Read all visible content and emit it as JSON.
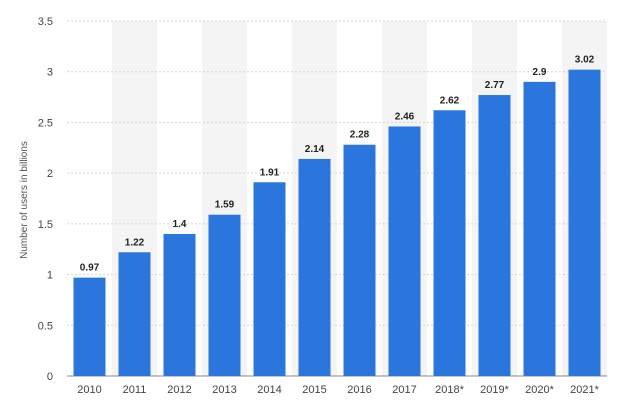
{
  "chart_data": {
    "type": "bar",
    "categories": [
      "2010",
      "2011",
      "2012",
      "2013",
      "2014",
      "2015",
      "2016",
      "2017",
      "2018*",
      "2019*",
      "2020*",
      "2021*"
    ],
    "values": [
      0.97,
      1.22,
      1.4,
      1.59,
      1.91,
      2.14,
      2.28,
      2.46,
      2.62,
      2.77,
      2.9,
      3.02
    ],
    "value_labels": [
      "0.97",
      "1.22",
      "1.4",
      "1.59",
      "1.91",
      "2.14",
      "2.28",
      "2.46",
      "2.62",
      "2.77",
      "2.9",
      "3.02"
    ],
    "ylabel": "Number of users in billions",
    "xlabel": "",
    "title": "",
    "ylim": [
      0,
      3.5
    ],
    "yticks": [
      "0",
      "0.5",
      "1",
      "1.5",
      "2",
      "2.5",
      "3",
      "3.5"
    ],
    "grid": true,
    "bar_color": "#2a76dd",
    "alternate_band_color": "#f4f4f4"
  }
}
